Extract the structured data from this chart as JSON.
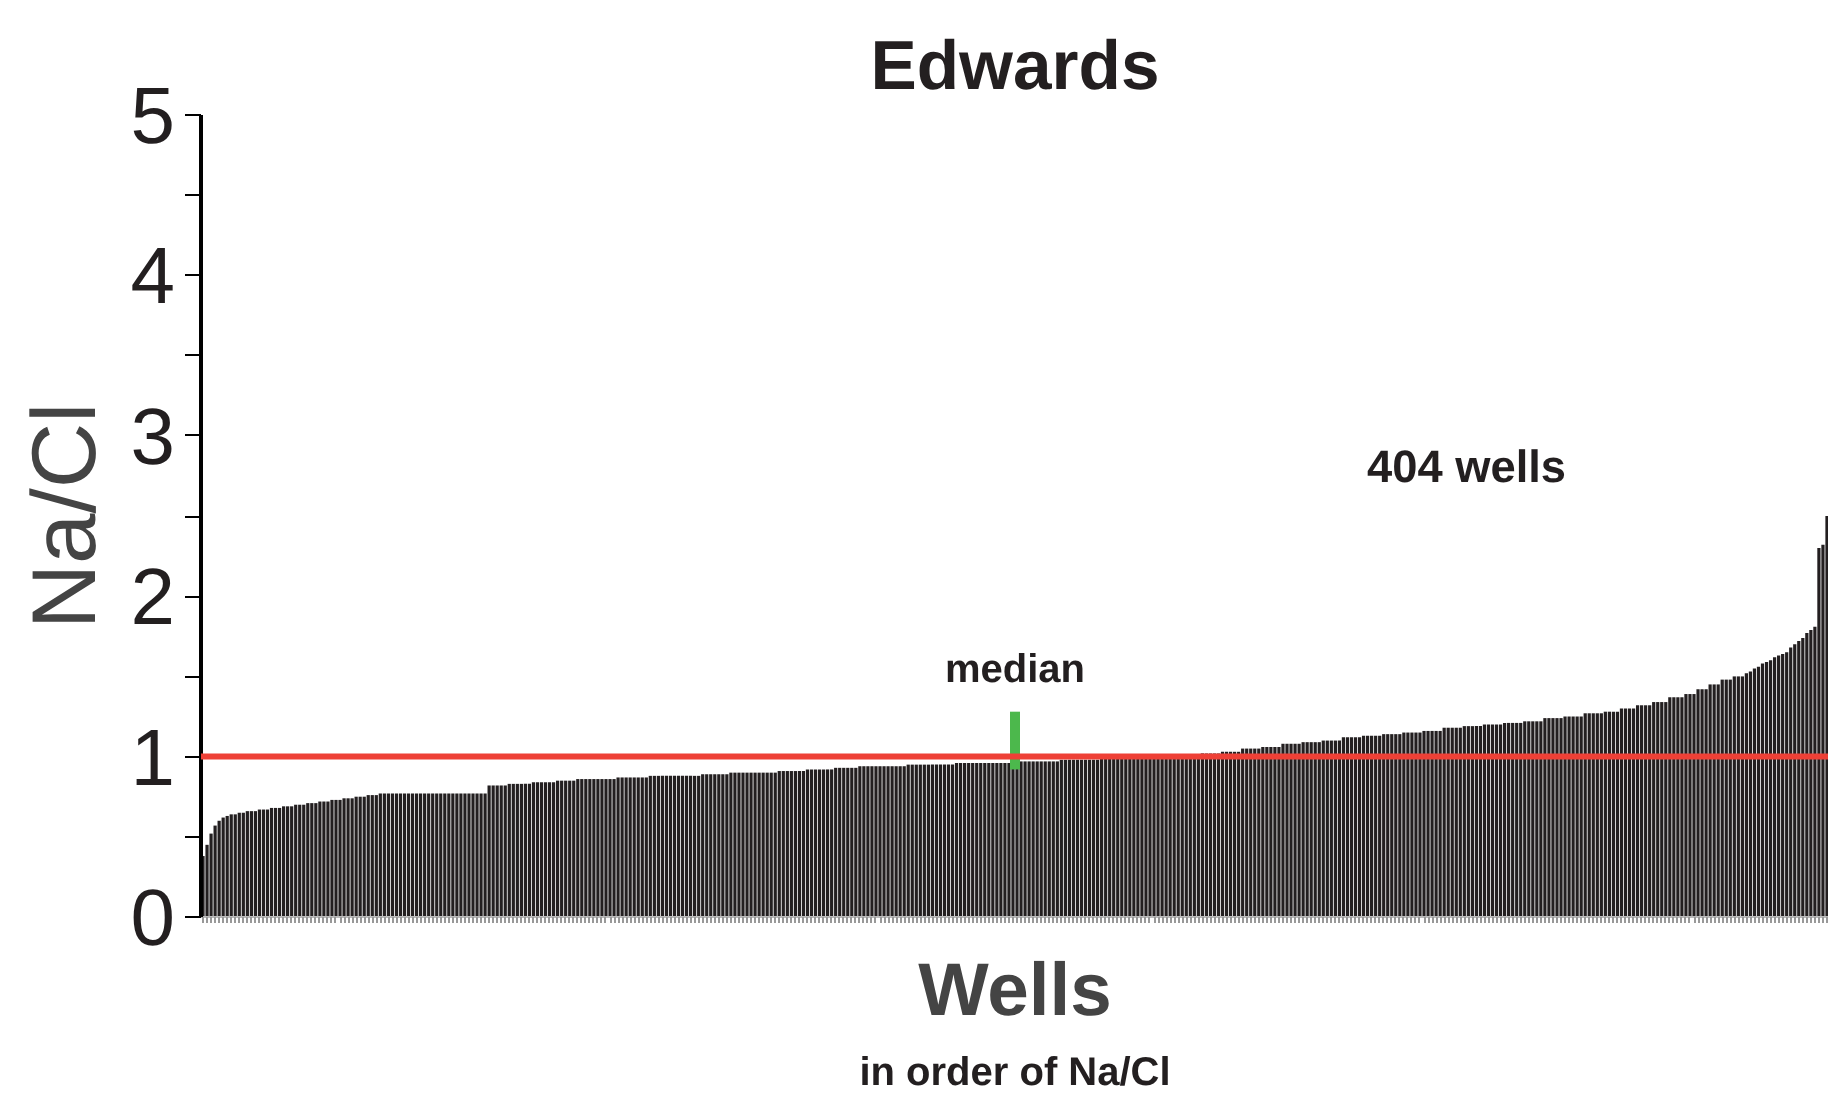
{
  "chart_data": {
    "type": "bar",
    "title": "Edwards",
    "xlabel": "Wells",
    "ylabel": "Na/Cl",
    "categories": [
      null,
      null,
      null,
      null,
      null,
      null,
      null,
      null,
      null,
      null,
      null,
      null,
      null,
      null,
      null,
      null,
      null,
      null,
      null,
      null,
      null,
      null,
      null,
      null,
      null,
      null,
      null,
      null,
      null,
      null,
      null,
      null,
      null,
      null,
      null,
      null,
      null,
      null,
      null,
      null,
      null,
      null,
      null,
      null,
      null,
      null,
      null,
      null,
      null,
      null,
      null,
      null,
      null,
      null,
      null,
      null,
      null,
      null,
      null,
      null,
      null,
      null,
      null,
      null,
      null,
      null,
      null,
      null,
      null,
      null,
      null,
      null,
      null,
      null,
      null,
      null,
      null,
      null,
      null,
      null,
      null,
      null,
      null,
      null,
      null,
      null,
      null,
      null,
      null,
      null,
      null,
      null,
      null,
      null,
      null,
      null,
      null,
      null,
      null,
      null,
      null,
      null,
      null,
      null,
      null,
      null,
      null,
      null,
      null,
      null,
      null,
      null,
      null,
      null,
      null,
      null,
      null,
      null,
      null,
      null,
      null,
      null,
      null,
      null,
      null,
      null,
      null,
      null,
      null,
      null,
      null,
      null,
      null,
      null,
      null,
      null,
      null,
      null,
      null,
      null,
      null,
      null,
      null,
      null,
      null,
      null,
      null,
      null,
      null,
      null,
      null,
      null,
      null,
      null,
      null,
      null,
      null,
      null,
      null,
      null,
      null,
      null,
      null,
      null,
      null,
      null,
      null,
      null,
      null,
      null,
      null,
      null,
      null,
      null,
      null,
      null,
      null,
      null,
      null,
      null,
      null,
      null,
      null,
      null,
      null,
      null,
      null,
      null,
      null,
      null,
      null,
      null,
      null,
      null,
      null,
      null,
      null,
      null,
      null,
      null,
      null,
      null,
      null,
      null,
      null,
      null,
      null,
      null,
      null,
      null,
      null,
      null,
      null,
      null,
      null,
      null,
      null,
      null,
      null,
      null,
      null,
      null,
      null,
      null,
      null,
      null,
      null,
      null,
      null,
      null,
      null,
      null,
      null,
      null,
      null,
      null,
      null,
      null,
      null,
      null,
      null,
      null,
      null,
      null,
      null,
      null,
      null,
      null,
      null,
      null,
      null,
      null,
      null,
      null,
      null,
      null,
      null,
      null,
      null,
      null,
      null,
      null,
      null,
      null,
      null,
      null,
      null,
      null,
      null,
      null,
      null,
      null,
      null,
      null,
      null,
      null,
      null,
      null,
      null,
      null,
      null,
      null,
      null,
      null,
      null,
      null,
      null,
      null,
      null,
      null,
      null,
      null,
      null,
      null,
      null,
      null,
      null,
      null,
      null,
      null,
      null,
      null,
      null,
      null,
      null,
      null,
      null,
      null,
      null,
      null,
      null,
      null,
      null,
      null,
      null,
      null,
      null,
      null,
      null,
      null,
      null,
      null,
      null,
      null,
      null,
      null,
      null,
      null,
      null,
      null,
      null,
      null,
      null,
      null,
      null,
      null,
      null,
      null,
      null,
      null,
      null,
      null,
      null,
      null,
      null,
      null,
      null,
      null,
      null,
      null,
      null,
      null,
      null,
      null,
      null,
      null,
      null,
      null,
      null,
      null,
      null,
      null,
      null,
      null,
      null,
      null,
      null,
      null,
      null,
      null,
      null,
      null,
      null,
      null,
      null,
      null,
      null,
      null,
      null,
      null,
      null,
      null,
      null,
      null,
      null,
      null,
      null,
      null,
      null,
      null,
      null,
      null,
      null,
      null,
      null,
      null,
      null,
      null,
      null,
      null,
      null,
      null,
      null,
      null
    ],
    "values": [
      0.38,
      0.45,
      0.52,
      0.57,
      0.6,
      0.62,
      0.63,
      0.64,
      0.64,
      0.65,
      0.65,
      0.66,
      0.66,
      0.66,
      0.67,
      0.67,
      0.67,
      0.68,
      0.68,
      0.68,
      0.69,
      0.69,
      0.69,
      0.7,
      0.7,
      0.7,
      0.71,
      0.71,
      0.71,
      0.72,
      0.72,
      0.72,
      0.73,
      0.73,
      0.73,
      0.74,
      0.74,
      0.74,
      0.75,
      0.75,
      0.75,
      0.76,
      0.76,
      0.76,
      0.77,
      0.77,
      0.77,
      0.77,
      0.77,
      0.77,
      0.77,
      0.77,
      0.77,
      0.77,
      0.77,
      0.77,
      0.77,
      0.77,
      0.77,
      0.77,
      0.77,
      0.77,
      0.77,
      0.77,
      0.77,
      0.77,
      0.77,
      0.77,
      0.77,
      0.77,
      0.77,
      0.82,
      0.82,
      0.82,
      0.82,
      0.82,
      0.83,
      0.83,
      0.83,
      0.83,
      0.83,
      0.83,
      0.84,
      0.84,
      0.84,
      0.84,
      0.84,
      0.84,
      0.85,
      0.85,
      0.85,
      0.85,
      0.85,
      0.86,
      0.86,
      0.86,
      0.86,
      0.86,
      0.86,
      0.86,
      0.86,
      0.86,
      0.86,
      0.87,
      0.87,
      0.87,
      0.87,
      0.87,
      0.87,
      0.87,
      0.87,
      0.88,
      0.88,
      0.88,
      0.88,
      0.88,
      0.88,
      0.88,
      0.88,
      0.88,
      0.88,
      0.88,
      0.88,
      0.88,
      0.89,
      0.89,
      0.89,
      0.89,
      0.89,
      0.89,
      0.89,
      0.9,
      0.9,
      0.9,
      0.9,
      0.9,
      0.9,
      0.9,
      0.9,
      0.9,
      0.9,
      0.9,
      0.9,
      0.91,
      0.91,
      0.91,
      0.91,
      0.91,
      0.91,
      0.91,
      0.92,
      0.92,
      0.92,
      0.92,
      0.92,
      0.92,
      0.92,
      0.93,
      0.93,
      0.93,
      0.93,
      0.93,
      0.93,
      0.94,
      0.94,
      0.94,
      0.94,
      0.94,
      0.94,
      0.94,
      0.94,
      0.94,
      0.94,
      0.94,
      0.94,
      0.95,
      0.95,
      0.95,
      0.95,
      0.95,
      0.95,
      0.95,
      0.95,
      0.95,
      0.95,
      0.95,
      0.95,
      0.96,
      0.96,
      0.96,
      0.96,
      0.96,
      0.96,
      0.96,
      0.96,
      0.96,
      0.96,
      0.96,
      0.96,
      0.96,
      0.96,
      0.96,
      0.96,
      0.97,
      0.97,
      0.97,
      0.97,
      0.97,
      0.97,
      0.97,
      0.97,
      0.97,
      0.97,
      0.98,
      0.98,
      0.98,
      0.98,
      0.98,
      0.98,
      0.98,
      0.98,
      0.98,
      0.98,
      0.99,
      0.99,
      0.99,
      0.99,
      0.99,
      0.99,
      0.99,
      0.99,
      0.99,
      0.99,
      1,
      1,
      1,
      1,
      1,
      1,
      1,
      1,
      1,
      1,
      1.01,
      1.01,
      1.01,
      1.01,
      1.01,
      1.02,
      1.02,
      1.02,
      1.02,
      1.02,
      1.03,
      1.03,
      1.03,
      1.03,
      1.03,
      1.05,
      1.05,
      1.05,
      1.05,
      1.05,
      1.06,
      1.06,
      1.06,
      1.06,
      1.06,
      1.08,
      1.08,
      1.08,
      1.08,
      1.08,
      1.09,
      1.09,
      1.09,
      1.09,
      1.09,
      1.1,
      1.1,
      1.1,
      1.1,
      1.1,
      1.12,
      1.12,
      1.12,
      1.12,
      1.12,
      1.13,
      1.13,
      1.13,
      1.13,
      1.13,
      1.14,
      1.14,
      1.14,
      1.14,
      1.14,
      1.15,
      1.15,
      1.15,
      1.15,
      1.15,
      1.16,
      1.16,
      1.16,
      1.16,
      1.16,
      1.18,
      1.18,
      1.18,
      1.18,
      1.18,
      1.19,
      1.19,
      1.19,
      1.19,
      1.19,
      1.2,
      1.2,
      1.2,
      1.2,
      1.2,
      1.21,
      1.21,
      1.21,
      1.21,
      1.21,
      1.22,
      1.22,
      1.22,
      1.22,
      1.22,
      1.24,
      1.24,
      1.24,
      1.24,
      1.24,
      1.25,
      1.25,
      1.25,
      1.25,
      1.25,
      1.27,
      1.27,
      1.27,
      1.27,
      1.27,
      1.28,
      1.28,
      1.28,
      1.28,
      1.3,
      1.3,
      1.3,
      1.3,
      1.32,
      1.32,
      1.32,
      1.32,
      1.34,
      1.34,
      1.34,
      1.34,
      1.37,
      1.37,
      1.37,
      1.37,
      1.39,
      1.39,
      1.39,
      1.42,
      1.42,
      1.42,
      1.45,
      1.45,
      1.45,
      1.48,
      1.48,
      1.48,
      1.5,
      1.5,
      1.5,
      1.52,
      1.53,
      1.55,
      1.56,
      1.58,
      1.59,
      1.6,
      1.62,
      1.63,
      1.64,
      1.65,
      1.68,
      1.7,
      1.72,
      1.74,
      1.77,
      1.79,
      1.81,
      2.3,
      2.32,
      2.5
    ],
    "color": "#231f20",
    "ylim": [
      0,
      5
    ],
    "yticks": [
      0,
      {
        "value": 0.5,
        "label": null
      },
      1,
      {
        "value": 1.5,
        "label": null
      },
      2,
      {
        "value": 2.5,
        "label": null
      },
      3,
      {
        "value": 3.5,
        "label": null
      },
      4,
      {
        "value": 4.5,
        "label": null
      },
      5
    ],
    "tick_labels": "y",
    "grid": false,
    "ref_lines": [
      {
        "axis": "y",
        "value": 1,
        "color": "#ee4036"
      }
    ],
    "annotations": [
      {
        "text": "median",
        "y": 1
      },
      "404 wells",
      "in order of Na/Cl"
    ]
  }
}
